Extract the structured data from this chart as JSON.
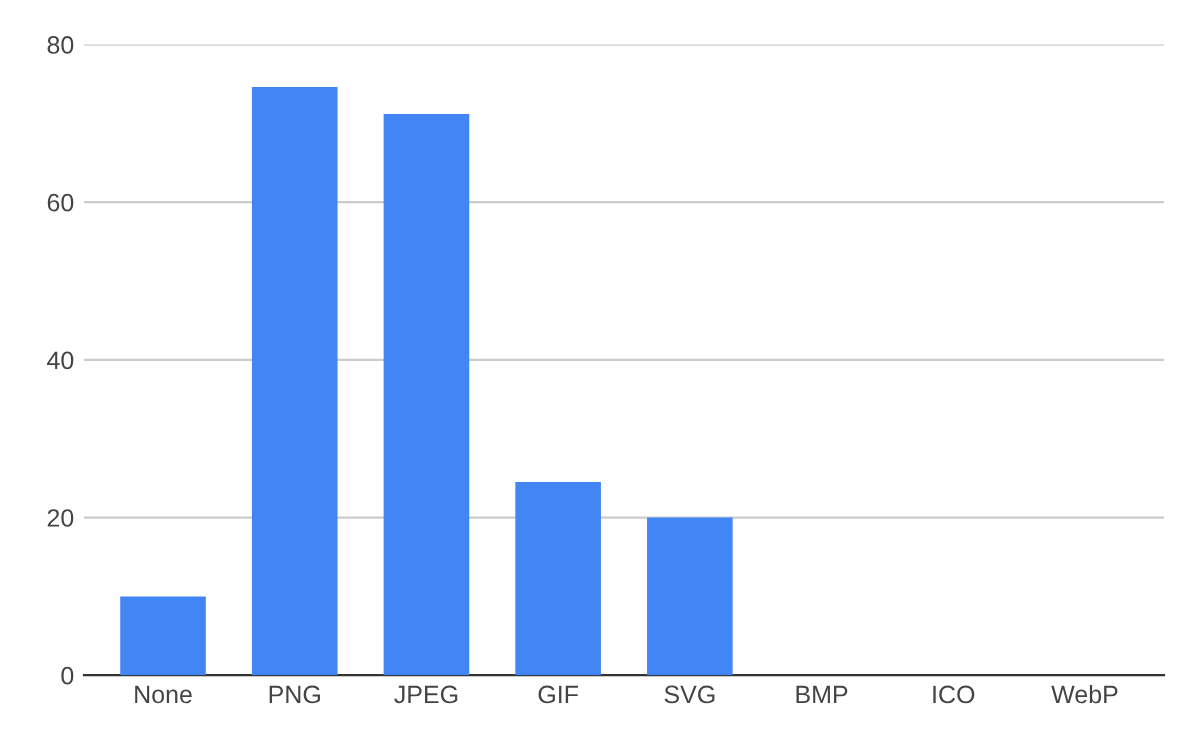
{
  "chart_data": {
    "type": "bar",
    "categories": [
      "None",
      "PNG",
      "JPEG",
      "GIF",
      "SVG",
      "BMP",
      "ICO",
      "WebP"
    ],
    "values": [
      10,
      74.6,
      71.2,
      24.5,
      20,
      0,
      0,
      0
    ],
    "color": "#4285f4",
    "ylim": [
      0,
      80
    ],
    "yticks": [
      0,
      20,
      40,
      60,
      80
    ],
    "grid": "y"
  }
}
